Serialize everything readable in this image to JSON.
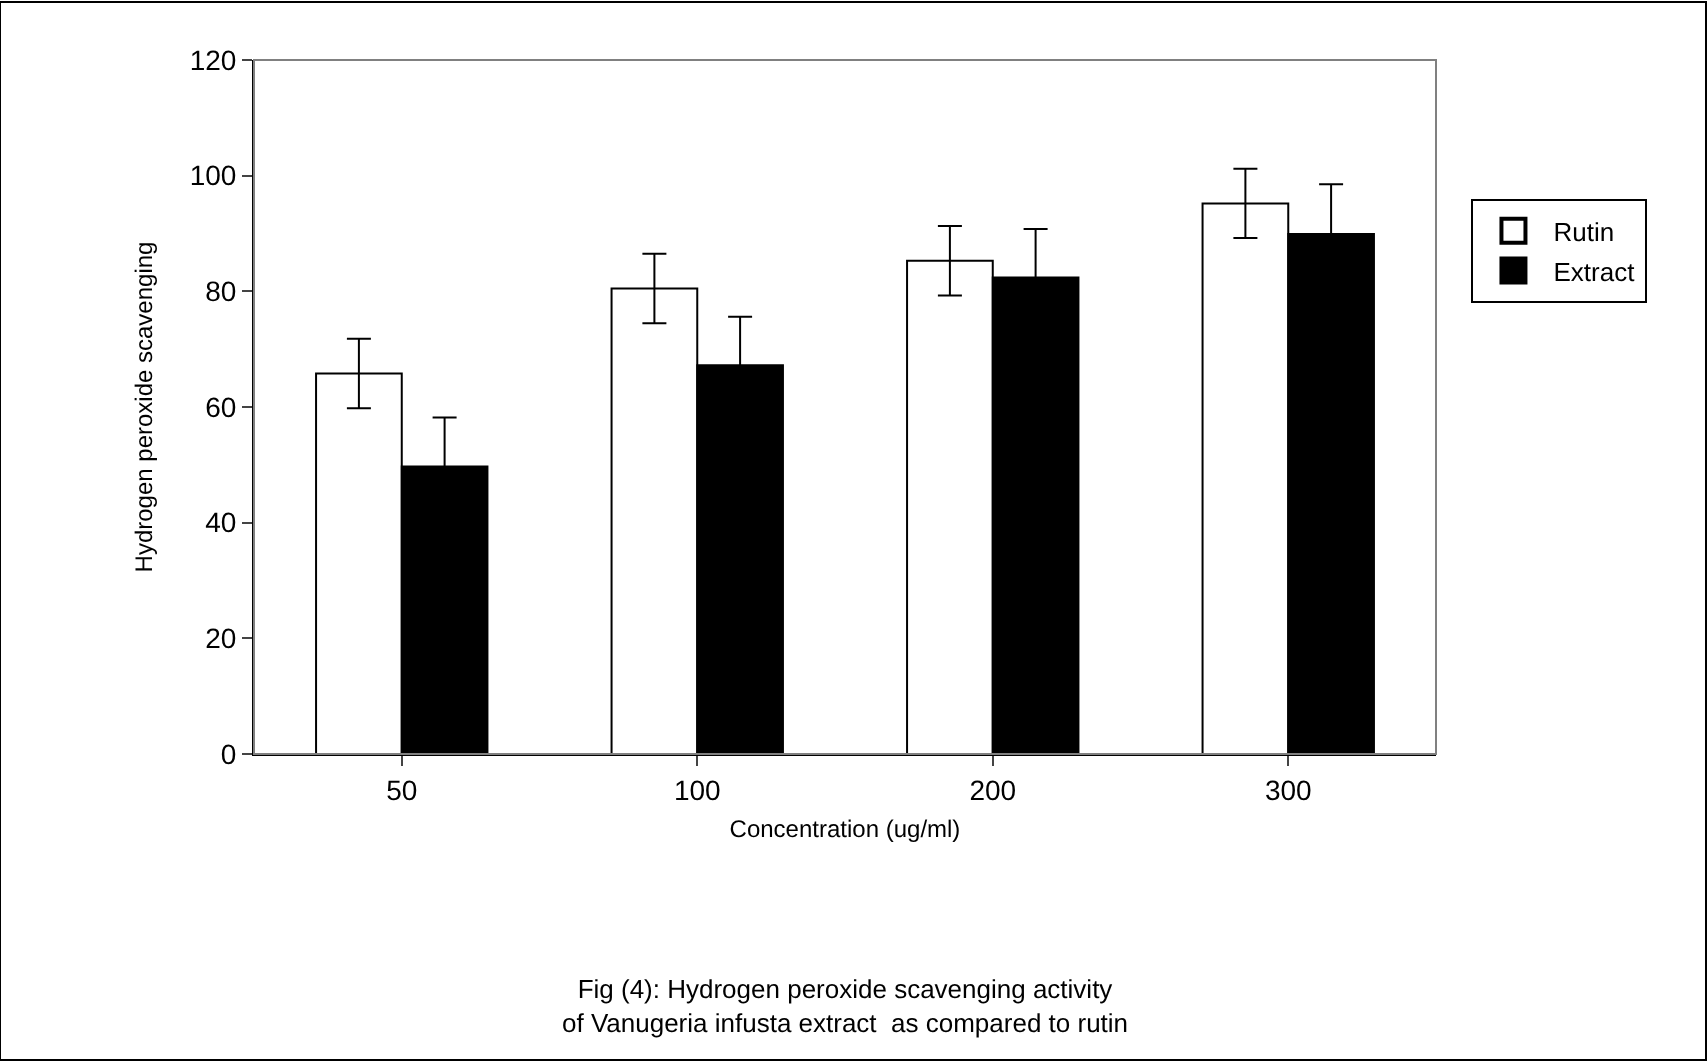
{
  "chart_data": {
    "type": "bar",
    "title": "Fig (4): Hydrogen peroxide scavenging activity\nof Vanugeria infusta extract  as compared to rutin",
    "xlabel": "Concentration (ug/ml)",
    "ylabel": "Hydrogen peroxide scavenging",
    "categories": [
      "50",
      "100",
      "200",
      "300"
    ],
    "series": [
      {
        "name": "Rutin",
        "color": "#ffffff",
        "values": [
          65.8,
          80.5,
          85.3,
          95.2
        ],
        "errors": [
          6,
          6,
          6,
          6
        ]
      },
      {
        "name": "Extract",
        "color": "#000000",
        "values": [
          49.7,
          67.2,
          82.4,
          89.9
        ],
        "errors": [
          8.5,
          8.4,
          8.4,
          8.6
        ]
      }
    ],
    "ylim": [
      0,
      120
    ],
    "yticks": [
      0,
      20,
      40,
      60,
      80,
      100,
      120
    ],
    "legend": "right"
  }
}
